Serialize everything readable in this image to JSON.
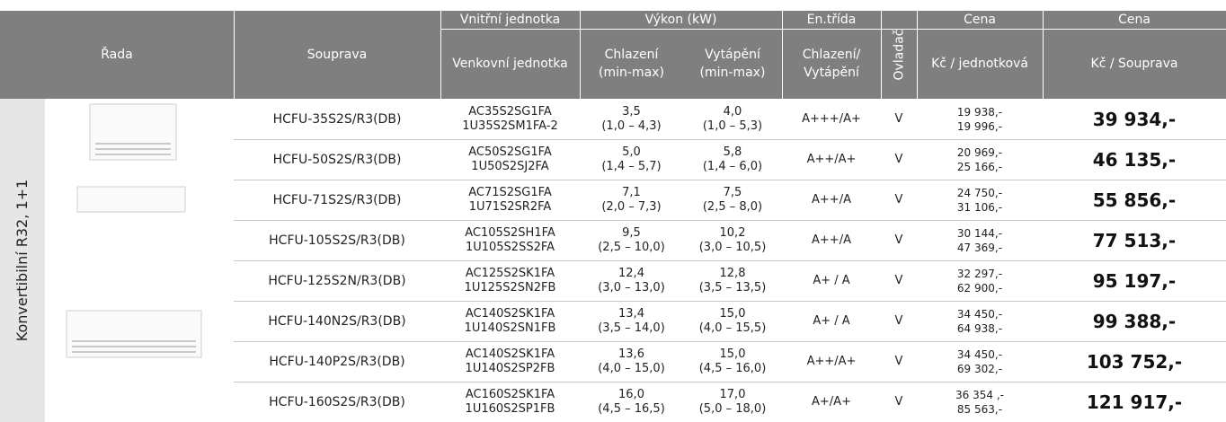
{
  "header": {
    "rada": "Řada",
    "souprava": "Souprava",
    "vnitrni": "Vnitřní jednotka",
    "venkovni": "Venkovní jednotka",
    "vykon": "Výkon (kW)",
    "chlazeni": "Chlazení",
    "chlazeni_sub": "(min-max)",
    "vytapeni": "Vytápění",
    "vytapeni_sub": "(min-max)",
    "entrida": "En.třída",
    "entrida_1": "Chlazení/",
    "entrida_2": "Vytápění",
    "ovladac": "Ovladač",
    "cena1": "Cena",
    "cena1_sub": "Kč / jednotková",
    "cena2": "Cena",
    "cena2_sub": "Kč / Souprava"
  },
  "series": "Konvertibilní R32, 1+1",
  "rows": [
    [
      "HCFU-35S2S/R3(DB)",
      "AC35S2SG1FA",
      "1U35S2SM1FA-2",
      "3,5",
      "(1,0 – 4,3)",
      "4,0",
      "(1,0 – 5,3)",
      "A+++/A+",
      "V",
      "19 938,-",
      "19 996,-",
      "39 934,-"
    ],
    [
      "HCFU-50S2S/R3(DB)",
      "AC50S2SG1FA",
      "1U50S2SJ2FA",
      "5,0",
      "(1,4 – 5,7)",
      "5,8",
      "(1,4 – 6,0)",
      "A++/A+",
      "V",
      "20 969,-",
      "25 166,-",
      "46 135,-"
    ],
    [
      "HCFU-71S2S/R3(DB)",
      "AC71S2SG1FA",
      "1U71S2SR2FA",
      "7,1",
      "(2,0 – 7,3)",
      "7,5",
      "(2,5 – 8,0)",
      "A++/A",
      "V",
      "24 750,-",
      "31 106,-",
      "55 856,-"
    ],
    [
      "HCFU-105S2S/R3(DB)",
      "AC105S2SH1FA",
      "1U105S2SS2FA",
      "9,5",
      "(2,5 – 10,0)",
      "10,2",
      "(3,0 – 10,5)",
      "A++/A",
      "V",
      "30 144,-",
      "47 369,-",
      "77 513,-"
    ],
    [
      "HCFU-125S2N/R3(DB)",
      "AC125S2SK1FA",
      "1U125S2SN2FB",
      "12,4",
      "(3,0 – 13,0)",
      "12,8",
      "(3,5 – 13,5)",
      "A+ / A",
      "V",
      "32 297,-",
      "62 900,-",
      "95 197,-"
    ],
    [
      "HCFU-140N2S/R3(DB)",
      "AC140S2SK1FA",
      "1U140S2SN1FB",
      "13,4",
      "(3,5 – 14,0)",
      "15,0",
      "(4,0 – 15,5)",
      "A+ / A",
      "V",
      "34 450,-",
      "64 938,-",
      "99 388,-"
    ],
    [
      "HCFU-140P2S/R3(DB)",
      "AC140S2SK1FA",
      "1U140S2SP2FB",
      "13,6",
      "(4,0 – 15,0)",
      "15,0",
      "(4,5 – 16,0)",
      "A++/A+",
      "V",
      "34 450,-",
      "69 302,-",
      "103 752,-"
    ],
    [
      "HCFU-160S2S/R3(DB)",
      "AC160S2SK1FA",
      "1U160S2SP1FB",
      "16,0",
      "(4,5 – 16,5)",
      "17,0",
      "(5,0 – 18,0)",
      "A+/A+",
      "V",
      "36 354 ,-",
      "85 563,-",
      "121 917,-"
    ]
  ]
}
